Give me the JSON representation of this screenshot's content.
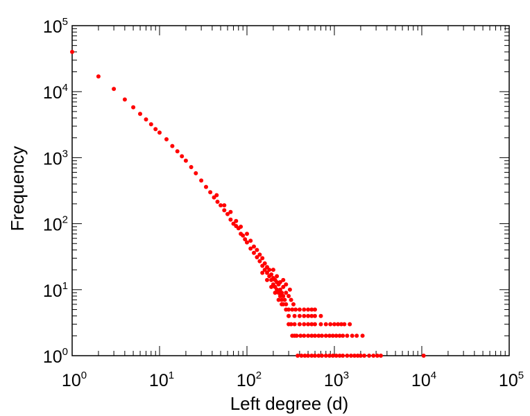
{
  "chart_data": {
    "type": "scatter",
    "title": "",
    "xlabel": "Left degree (d)",
    "ylabel": "Frequency",
    "xscale": "log",
    "yscale": "log",
    "xlim": [
      1,
      100000
    ],
    "ylim": [
      1,
      100000
    ],
    "grid": false,
    "legend": "none",
    "x_ticks": [
      {
        "base": "10",
        "exp": "0"
      },
      {
        "base": "10",
        "exp": "1"
      },
      {
        "base": "10",
        "exp": "2"
      },
      {
        "base": "10",
        "exp": "3"
      },
      {
        "base": "10",
        "exp": "4"
      },
      {
        "base": "10",
        "exp": "5"
      }
    ],
    "y_ticks": [
      {
        "base": "10",
        "exp": "0"
      },
      {
        "base": "10",
        "exp": "1"
      },
      {
        "base": "10",
        "exp": "2"
      },
      {
        "base": "10",
        "exp": "3"
      },
      {
        "base": "10",
        "exp": "4"
      },
      {
        "base": "10",
        "exp": "5"
      }
    ],
    "colors": {
      "marker": "#ff0000",
      "axis": "#000000"
    },
    "series": [
      {
        "points": [
          [
            1,
            40000
          ],
          [
            2,
            17000
          ],
          [
            3,
            11000
          ],
          [
            4,
            7600
          ],
          [
            5,
            5800
          ],
          [
            6,
            4600
          ],
          [
            7,
            3800
          ],
          [
            8,
            3200
          ],
          [
            9,
            2700
          ],
          [
            10,
            2400
          ],
          [
            12,
            1900
          ],
          [
            14,
            1500
          ],
          [
            16,
            1250
          ],
          [
            18,
            1050
          ],
          [
            20,
            900
          ],
          [
            23,
            720
          ],
          [
            26,
            580
          ],
          [
            30,
            450
          ],
          [
            34,
            360
          ],
          [
            38,
            300
          ],
          [
            42,
            250
          ],
          [
            46,
            215
          ],
          [
            50,
            190
          ],
          [
            55,
            160
          ],
          [
            60,
            140
          ],
          [
            65,
            115
          ],
          [
            70,
            100
          ],
          [
            75,
            92
          ],
          [
            80,
            85
          ],
          [
            85,
            70
          ],
          [
            90,
            66
          ],
          [
            95,
            58
          ],
          [
            100,
            52
          ],
          [
            110,
            42
          ],
          [
            120,
            36
          ],
          [
            130,
            31
          ],
          [
            140,
            27
          ],
          [
            150,
            23
          ],
          [
            160,
            20
          ],
          [
            170,
            18
          ],
          [
            180,
            16
          ],
          [
            190,
            14
          ],
          [
            200,
            12
          ],
          [
            210,
            11
          ],
          [
            220,
            10
          ],
          [
            230,
            9
          ],
          [
            240,
            8
          ],
          [
            250,
            7
          ],
          [
            260,
            6
          ],
          [
            280,
            5
          ],
          [
            300,
            4
          ],
          [
            320,
            3
          ],
          [
            350,
            2
          ],
          [
            45,
            270
          ],
          [
            55,
            190
          ],
          [
            65,
            150
          ],
          [
            75,
            110
          ],
          [
            85,
            90
          ],
          [
            100,
            70
          ],
          [
            110,
            55
          ],
          [
            120,
            45
          ],
          [
            130,
            40
          ],
          [
            140,
            34
          ],
          [
            150,
            30
          ],
          [
            160,
            25
          ],
          [
            170,
            22
          ],
          [
            180,
            20
          ],
          [
            190,
            17
          ],
          [
            200,
            15
          ],
          [
            210,
            14
          ],
          [
            220,
            13
          ],
          [
            230,
            12
          ],
          [
            240,
            10
          ],
          [
            250,
            9
          ],
          [
            260,
            8
          ],
          [
            270,
            7
          ],
          [
            280,
            6
          ],
          [
            150,
            18
          ],
          [
            170,
            14
          ],
          [
            190,
            11
          ],
          [
            210,
            9
          ],
          [
            230,
            7
          ],
          [
            250,
            6
          ],
          [
            200,
            20
          ],
          [
            220,
            16
          ],
          [
            240,
            13
          ],
          [
            260,
            11
          ],
          [
            280,
            9
          ],
          [
            300,
            8
          ],
          [
            320,
            7
          ],
          [
            310,
            10
          ],
          [
            280,
            12
          ],
          [
            260,
            14
          ],
          [
            340,
            6
          ],
          [
            360,
            5
          ],
          [
            300,
            5
          ],
          [
            330,
            5
          ],
          [
            400,
            5
          ],
          [
            450,
            5
          ],
          [
            500,
            5
          ],
          [
            550,
            5
          ],
          [
            600,
            5
          ],
          [
            300,
            4
          ],
          [
            350,
            4
          ],
          [
            400,
            4
          ],
          [
            450,
            4
          ],
          [
            500,
            4
          ],
          [
            550,
            4
          ],
          [
            600,
            4
          ],
          [
            700,
            4
          ],
          [
            300,
            3
          ],
          [
            350,
            3
          ],
          [
            400,
            3
          ],
          [
            450,
            3
          ],
          [
            500,
            3
          ],
          [
            550,
            3
          ],
          [
            600,
            3
          ],
          [
            700,
            3
          ],
          [
            800,
            3
          ],
          [
            900,
            3
          ],
          [
            1000,
            3
          ],
          [
            1100,
            3
          ],
          [
            1200,
            3
          ],
          [
            1300,
            3
          ],
          [
            1500,
            3
          ],
          [
            330,
            2
          ],
          [
            370,
            2
          ],
          [
            410,
            2
          ],
          [
            450,
            2
          ],
          [
            500,
            2
          ],
          [
            550,
            2
          ],
          [
            600,
            2
          ],
          [
            660,
            2
          ],
          [
            720,
            2
          ],
          [
            800,
            2
          ],
          [
            880,
            2
          ],
          [
            960,
            2
          ],
          [
            1050,
            2
          ],
          [
            1150,
            2
          ],
          [
            1250,
            2
          ],
          [
            1400,
            2
          ],
          [
            1600,
            2
          ],
          [
            1800,
            2
          ],
          [
            2100,
            2
          ],
          [
            380,
            1
          ],
          [
            420,
            1
          ],
          [
            460,
            1
          ],
          [
            500,
            1
          ],
          [
            550,
            1
          ],
          [
            600,
            1
          ],
          [
            660,
            1
          ],
          [
            720,
            1
          ],
          [
            800,
            1
          ],
          [
            880,
            1
          ],
          [
            960,
            1
          ],
          [
            1050,
            1
          ],
          [
            1150,
            1
          ],
          [
            1250,
            1
          ],
          [
            1400,
            1
          ],
          [
            1550,
            1
          ],
          [
            1700,
            1
          ],
          [
            1850,
            1
          ],
          [
            2000,
            1
          ],
          [
            2200,
            1
          ],
          [
            2500,
            1
          ],
          [
            2800,
            1
          ],
          [
            3100,
            1
          ],
          [
            3400,
            1
          ],
          [
            10500,
            1
          ]
        ]
      }
    ]
  }
}
